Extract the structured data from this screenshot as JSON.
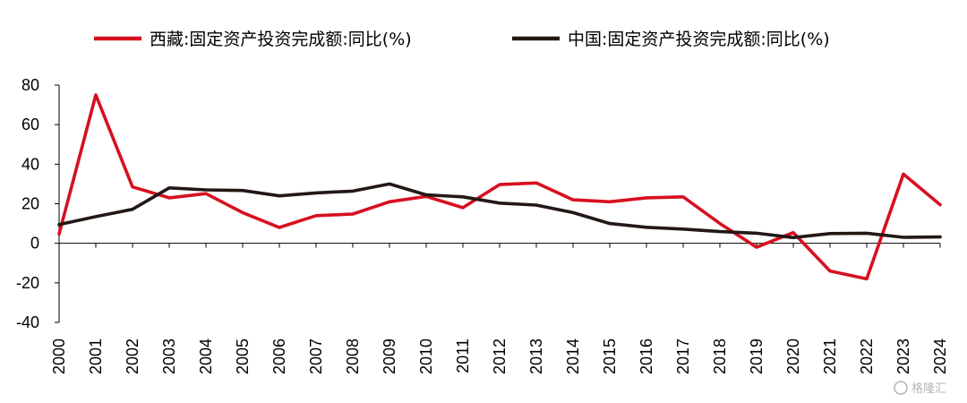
{
  "chart_data": {
    "type": "line",
    "title": "",
    "xlabel": "",
    "ylabel": "",
    "ylim": [
      -40,
      80
    ],
    "yticks": [
      -40,
      -20,
      0,
      20,
      40,
      60,
      80
    ],
    "legend_position": "top",
    "grid": false,
    "x": [
      "2000",
      "2001",
      "2002",
      "2003",
      "2004",
      "2005",
      "2006",
      "2007",
      "2008",
      "2009",
      "2010",
      "2011",
      "2012",
      "2013",
      "2014",
      "2015",
      "2016",
      "2017",
      "2018",
      "2019",
      "2020",
      "2021",
      "2022",
      "2023",
      "2024"
    ],
    "series": [
      {
        "name": "西藏:固定资产投资完成额:同比(%)",
        "color": "#d7101f",
        "values": [
          4.7,
          75.0,
          28.5,
          23.0,
          25.1,
          15.5,
          8.0,
          14.0,
          14.8,
          21.0,
          23.7,
          18.0,
          29.7,
          30.5,
          22.0,
          21.0,
          23.0,
          23.5,
          10.0,
          -2.0,
          5.4,
          -14.0,
          -18.0,
          35.0,
          19.5
        ]
      },
      {
        "name": "中国:固定资产投资完成额:同比(%)",
        "color": "#231815",
        "values": [
          9.5,
          13.5,
          17.2,
          28.0,
          27.0,
          26.7,
          24.0,
          25.5,
          26.4,
          30.0,
          24.5,
          23.5,
          20.3,
          19.3,
          15.5,
          10.0,
          8.1,
          7.2,
          5.9,
          5.1,
          2.9,
          4.9,
          5.1,
          3.0,
          3.2
        ]
      }
    ]
  },
  "watermark": "格隆汇"
}
